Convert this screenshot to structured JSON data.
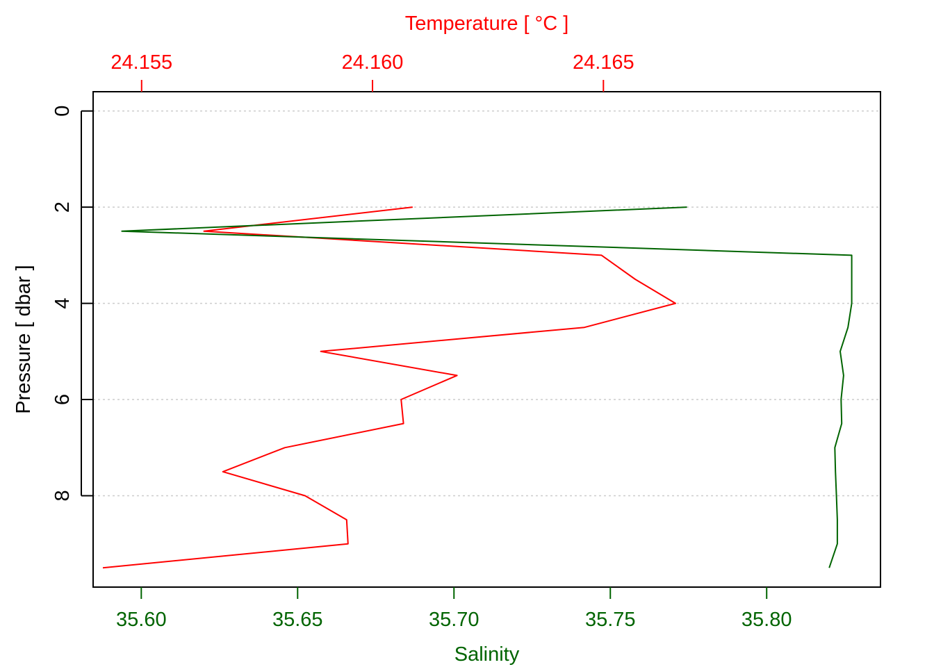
{
  "chart_data": {
    "type": "line",
    "title": "",
    "top_axis": {
      "label": "Temperature [ °C ]",
      "color": "#ff0000",
      "ticks": [
        24.155,
        24.16,
        24.165
      ],
      "tick_labels": [
        "24.155",
        "24.160",
        "24.165"
      ],
      "range": [
        24.15395,
        24.171
      ]
    },
    "bottom_axis": {
      "label": "Salinity",
      "color": "#006400",
      "ticks": [
        35.6,
        35.65,
        35.7,
        35.75,
        35.8
      ],
      "tick_labels": [
        "35.60",
        "35.65",
        "35.70",
        "35.75",
        "35.80"
      ],
      "range": [
        35.5846,
        35.8364
      ]
    },
    "left_axis": {
      "label": "Pressure [ dbar ]",
      "color": "#000000",
      "ticks": [
        0,
        2,
        4,
        6,
        8
      ],
      "tick_labels": [
        "0",
        "2",
        "4",
        "6",
        "8"
      ],
      "range": [
        -0.4,
        9.9
      ],
      "reversed": true
    },
    "grid": "dotted horizontal at pressure ticks",
    "series": [
      {
        "axis": "top",
        "color": "#ff0000",
        "pressure": [
          2.0,
          2.5,
          3.0,
          3.5,
          4.0,
          4.5,
          5.0,
          5.5,
          6.0,
          6.5,
          7.0,
          7.5,
          8.0,
          8.5,
          9.0,
          9.5
        ],
        "values": [
          24.16087,
          24.15635,
          24.16496,
          24.16569,
          24.16656,
          24.16459,
          24.15888,
          24.16183,
          24.16062,
          24.16067,
          24.1581,
          24.15676,
          24.15854,
          24.15944,
          24.15947,
          24.15416
        ]
      },
      {
        "axis": "bottom",
        "color": "#006400",
        "pressure": [
          2.0,
          2.5,
          3.0,
          4.0,
          4.5,
          5.0,
          5.5,
          6.0,
          6.5,
          7.0,
          7.5,
          8.0,
          8.5,
          9.0,
          9.5
        ],
        "values": [
          35.7745,
          35.5938,
          35.8272,
          35.8272,
          35.826,
          35.8235,
          35.8246,
          35.8238,
          35.824,
          35.8218,
          35.822,
          35.8223,
          35.8226,
          35.8226,
          35.82
        ]
      }
    ]
  }
}
